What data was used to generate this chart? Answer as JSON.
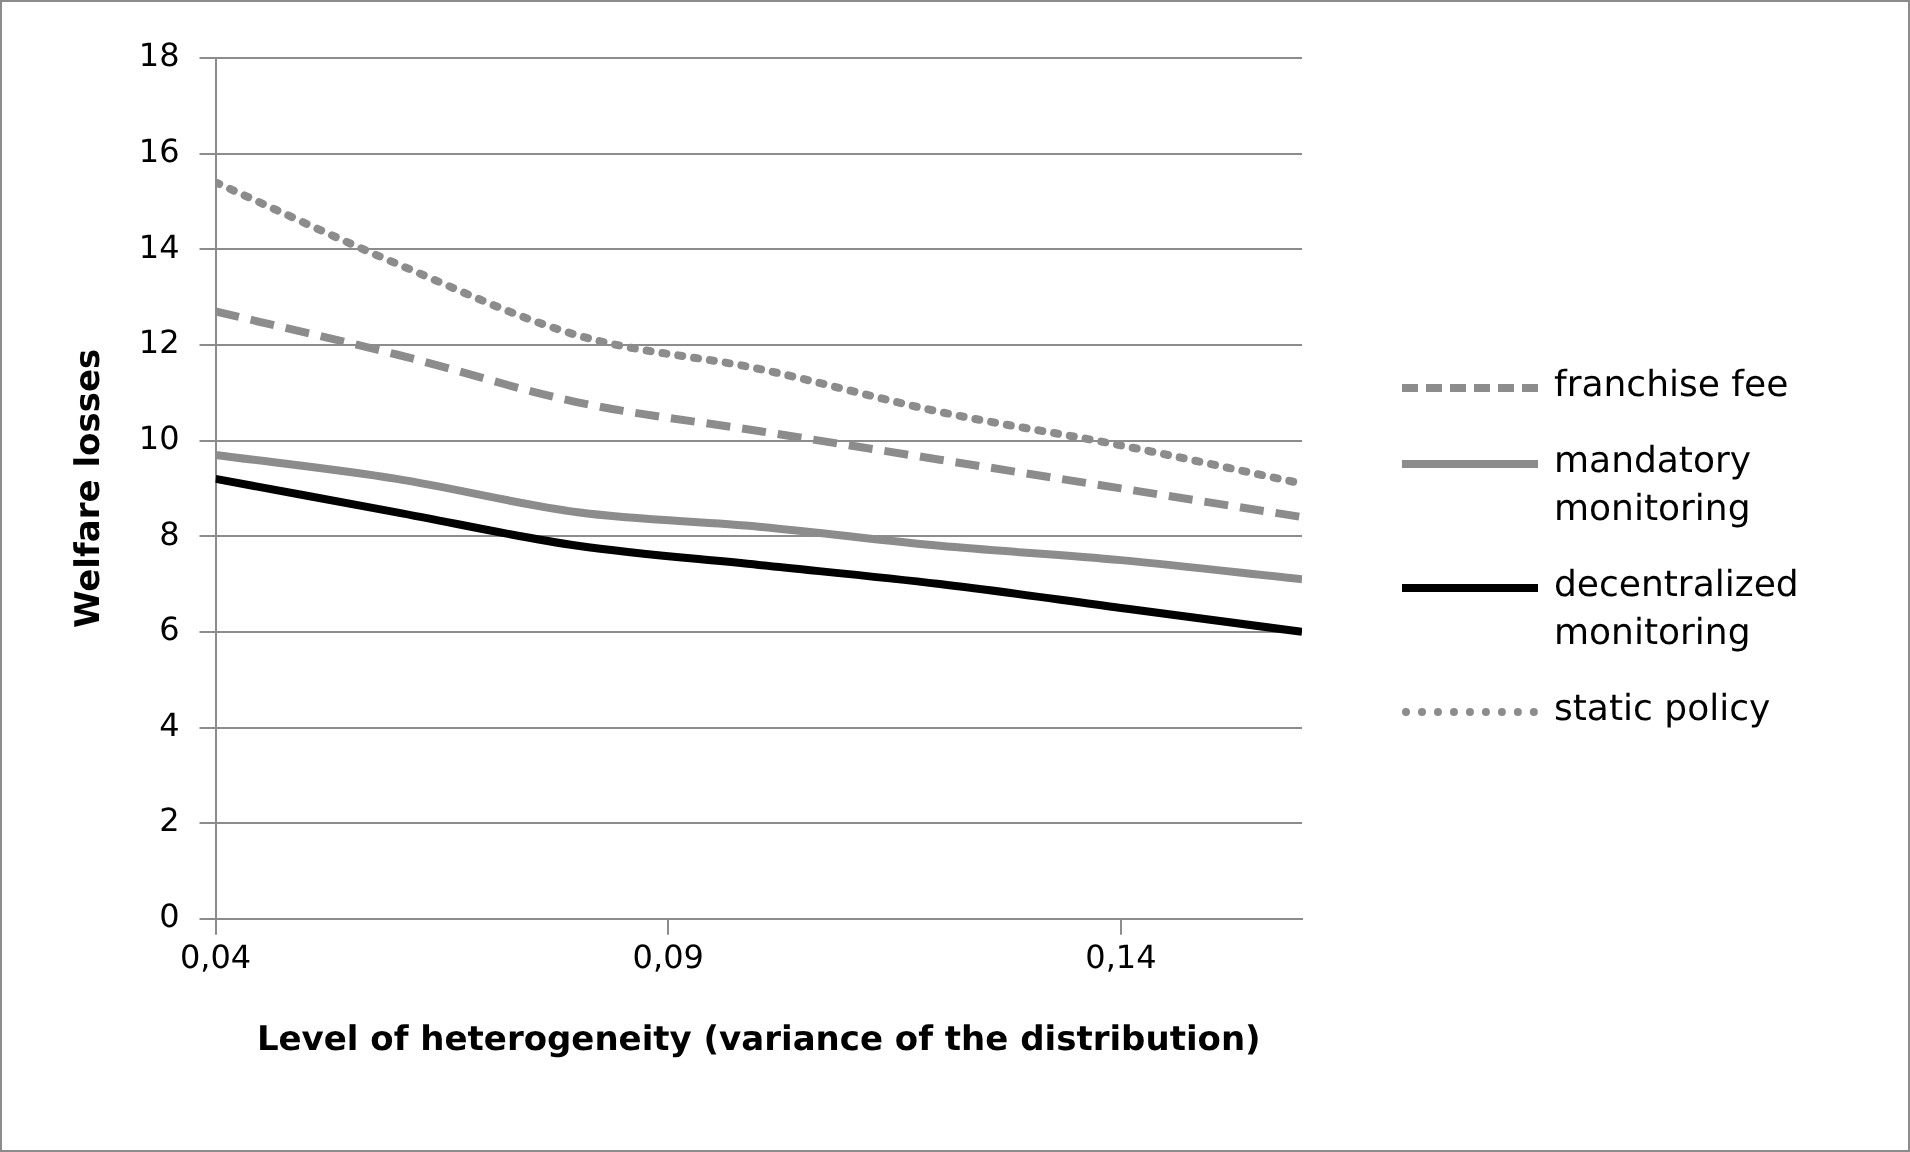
{
  "chart_data": {
    "type": "line",
    "xlabel": "Level of heterogeneity (variance of the distribution)",
    "ylabel": "Welfare losses",
    "x": [
      0.04,
      0.06,
      0.08,
      0.1,
      0.12,
      0.14,
      0.16
    ],
    "xlim": [
      0.04,
      0.16
    ],
    "xticks": [
      {
        "value": 0.04,
        "label": "0,04"
      },
      {
        "value": 0.09,
        "label": "0,09"
      },
      {
        "value": 0.14,
        "label": "0,14"
      }
    ],
    "ylim": [
      0,
      18
    ],
    "yticks": [
      0,
      2,
      4,
      6,
      8,
      10,
      12,
      14,
      16,
      18
    ],
    "grid": "y",
    "legend": "right",
    "marker": "none",
    "series": [
      {
        "name": "franchise fee",
        "color": "#8c8c8c",
        "line_style": "dashed",
        "values": [
          12.7,
          11.8,
          10.8,
          10.2,
          9.6,
          9.0,
          8.4
        ]
      },
      {
        "name": "mandatory monitoring",
        "color": "#8c8c8c",
        "line_style": "solid",
        "values": [
          9.7,
          9.2,
          8.5,
          8.2,
          7.8,
          7.5,
          7.1
        ]
      },
      {
        "name": "decentralized monitoring",
        "color": "#000000",
        "line_style": "solid",
        "values": [
          9.2,
          8.5,
          7.8,
          7.4,
          7.0,
          6.5,
          6.0
        ]
      },
      {
        "name": "static policy",
        "color": "#8c8c8c",
        "line_style": "dotted",
        "values": [
          15.4,
          13.7,
          12.2,
          11.5,
          10.6,
          9.9,
          9.1
        ]
      }
    ]
  }
}
